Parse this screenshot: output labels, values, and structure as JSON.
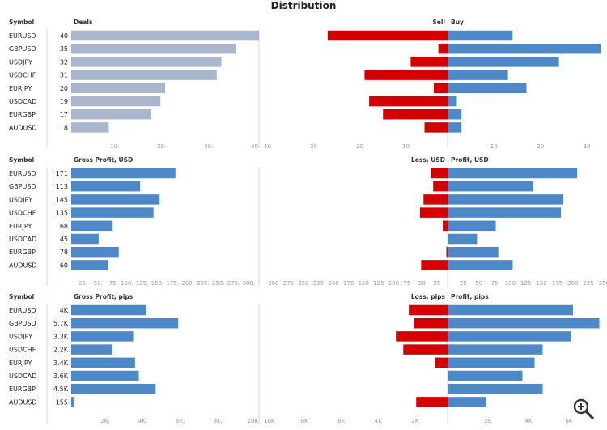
{
  "title": "Distribution",
  "colors": {
    "deals": "#a9b6cc",
    "blue": "#4f88c6",
    "red": "#d40000",
    "axis": "#cfd5dc",
    "tick": "#9a9a9a"
  },
  "symbols": [
    "EURUSD",
    "GBPUSD",
    "USDJPY",
    "USDCHF",
    "EURJPY",
    "USDCAD",
    "EURGBP",
    "AUDUSD"
  ],
  "zoom_icon": "zoom-in-icon",
  "chart_data": [
    {
      "id": "deals",
      "type": "bar",
      "symbol_header": "Symbol",
      "left_title": "Deals",
      "left_values": [
        40,
        35,
        32,
        31,
        20,
        19,
        17,
        8
      ],
      "left_labels": [
        "40",
        "35",
        "32",
        "31",
        "20",
        "19",
        "17",
        "8"
      ],
      "left_ticks": [
        "10",
        "20",
        "30",
        "40"
      ],
      "left_tick_values": [
        10,
        20,
        30,
        40
      ],
      "left_max": 40,
      "left_color": "deals",
      "right_neg_title": "Sell",
      "right_pos_title": "Buy",
      "sell": [
        26,
        2,
        8,
        18,
        3,
        17,
        14,
        5
      ],
      "buy": [
        14,
        33,
        24,
        13,
        17,
        2,
        3,
        3
      ],
      "right_neg_ticks": [
        "40",
        "30",
        "20",
        "10"
      ],
      "right_neg_tick_values": [
        40,
        30,
        20,
        10
      ],
      "right_pos_ticks": [
        "10",
        "20",
        "30"
      ],
      "right_pos_tick_values": [
        10,
        20,
        30
      ],
      "right_neg_max": 40,
      "right_pos_max": 34
    },
    {
      "id": "profit_usd",
      "type": "bar",
      "symbol_header": "Symbol",
      "left_title": "Gross Profit, USD",
      "left_values": [
        171,
        113,
        145,
        135,
        68,
        45,
        78,
        60
      ],
      "left_labels": [
        "171",
        "113",
        "145",
        "135",
        "68",
        "45",
        "78",
        "60"
      ],
      "left_ticks": [
        "25",
        "50",
        "75",
        "100",
        "125",
        "150",
        "175",
        "200",
        "225",
        "250",
        "275",
        "300"
      ],
      "left_tick_values": [
        25,
        50,
        75,
        100,
        125,
        150,
        175,
        200,
        225,
        250,
        275,
        300
      ],
      "left_max": 308,
      "left_color": "blue",
      "right_neg_title": "Loss, USD",
      "right_pos_title": "Profit, USD",
      "sell": [
        28,
        24,
        40,
        46,
        8,
        0,
        2,
        44
      ],
      "buy": [
        207,
        137,
        185,
        181,
        77,
        47,
        81,
        104
      ],
      "right_neg_ticks": [
        "300",
        "275",
        "250",
        "225",
        "200",
        "175",
        "150",
        "125",
        "100",
        "75",
        "50",
        "25"
      ],
      "right_neg_tick_values": [
        300,
        275,
        250,
        225,
        200,
        175,
        150,
        125,
        100,
        75,
        50,
        25
      ],
      "right_pos_ticks": [
        "25",
        "50",
        "75",
        "100",
        "125",
        "150",
        "175",
        "200",
        "225",
        "250"
      ],
      "right_pos_tick_values": [
        25,
        50,
        75,
        100,
        125,
        150,
        175,
        200,
        225,
        250
      ],
      "right_neg_max": 307,
      "right_pos_max": 252
    },
    {
      "id": "profit_pips",
      "type": "bar",
      "symbol_header": "Symbol",
      "left_title": "Gross Profit, pips",
      "left_values": [
        4000,
        5700,
        3300,
        2200,
        3400,
        3600,
        4500,
        155
      ],
      "left_labels": [
        "4K",
        "5.7K",
        "3.3K",
        "2.2K",
        "3.4K",
        "3.6K",
        "4.5K",
        "155"
      ],
      "left_ticks": [
        "2K",
        "4K",
        "6K",
        "8K",
        "10K"
      ],
      "left_tick_values": [
        2000,
        4000,
        6000,
        8000,
        10000
      ],
      "left_max": 10000,
      "left_color": "blue",
      "right_neg_title": "Loss, pips",
      "right_pos_title": "Profit, pips",
      "sell": [
        2100,
        1800,
        2800,
        2400,
        700,
        0,
        0,
        1700
      ],
      "buy": [
        6200,
        7500,
        6100,
        4700,
        4300,
        3700,
        4700,
        1900
      ],
      "right_neg_ticks": [
        "10K",
        "8K",
        "6K",
        "4K",
        "2K"
      ],
      "right_neg_tick_values": [
        10000,
        8000,
        6000,
        4000,
        2000
      ],
      "right_pos_ticks": [
        "2K",
        "4K",
        "6K"
      ],
      "right_pos_tick_values": [
        2000,
        4000,
        6000
      ],
      "right_neg_max": 10000,
      "right_pos_max": 7800
    }
  ]
}
